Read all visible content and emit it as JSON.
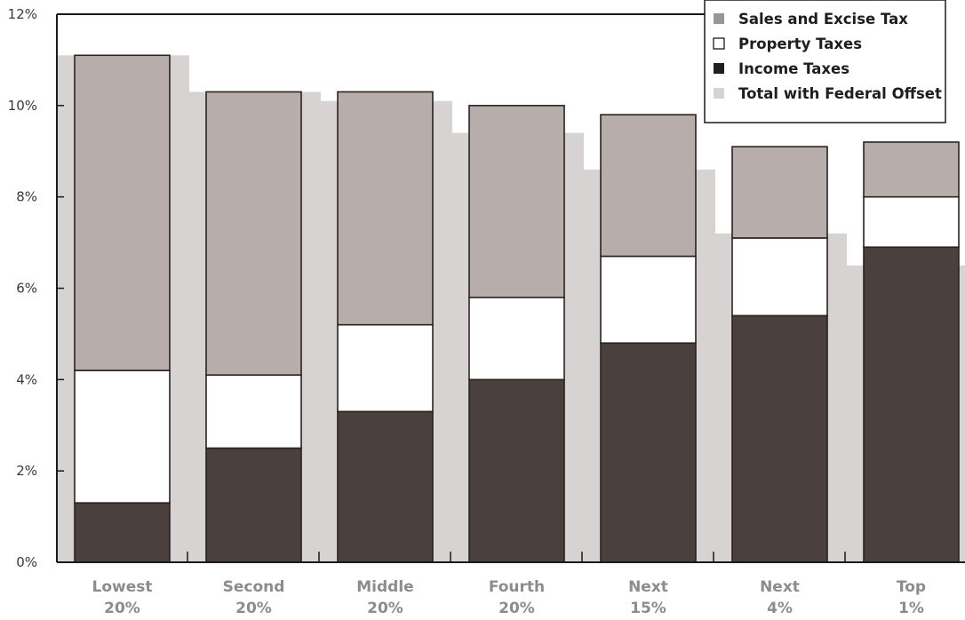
{
  "chart_data": {
    "type": "bar",
    "stacked": true,
    "categories": [
      [
        "Lowest",
        "20%"
      ],
      [
        "Second",
        "20%"
      ],
      [
        "Middle",
        "20%"
      ],
      [
        "Fourth",
        "20%"
      ],
      [
        "Next",
        "15%"
      ],
      [
        "Next",
        "4%"
      ],
      [
        "Top",
        "1%"
      ]
    ],
    "series": [
      {
        "name": "Income Taxes",
        "color": "#4a403e",
        "values": [
          1.3,
          2.5,
          3.3,
          4.0,
          4.8,
          5.4,
          6.9
        ]
      },
      {
        "name": "Property Taxes",
        "color": "#ffffff",
        "values": [
          2.9,
          1.6,
          1.9,
          1.8,
          1.9,
          1.7,
          1.1
        ]
      },
      {
        "name": "Sales and Excise Tax",
        "color": "#b7aeac",
        "values": [
          6.9,
          6.2,
          5.1,
          4.2,
          3.1,
          2.0,
          1.2
        ]
      }
    ],
    "offset_series": {
      "name": "Total with Federal Offset",
      "color": "#d8d3d3",
      "values": [
        11.1,
        10.3,
        10.1,
        9.4,
        8.6,
        7.2,
        6.5
      ]
    },
    "legend": {
      "position": "top-right",
      "items": [
        {
          "label": "Sales and Excise Tax",
          "color": "#9b9596"
        },
        {
          "label": "Property Taxes",
          "color": "#ffffff"
        },
        {
          "label": "Income Taxes",
          "color": "#1e1e1e"
        },
        {
          "label": "Total with Federal Offset",
          "color": "#d8d3d3"
        }
      ]
    },
    "ylim": [
      0,
      12
    ],
    "yticks": [
      "0%",
      "2%",
      "4%",
      "6%",
      "8%",
      "10%",
      "12%"
    ],
    "title": "",
    "xlabel": "",
    "ylabel": "",
    "grid": false
  }
}
